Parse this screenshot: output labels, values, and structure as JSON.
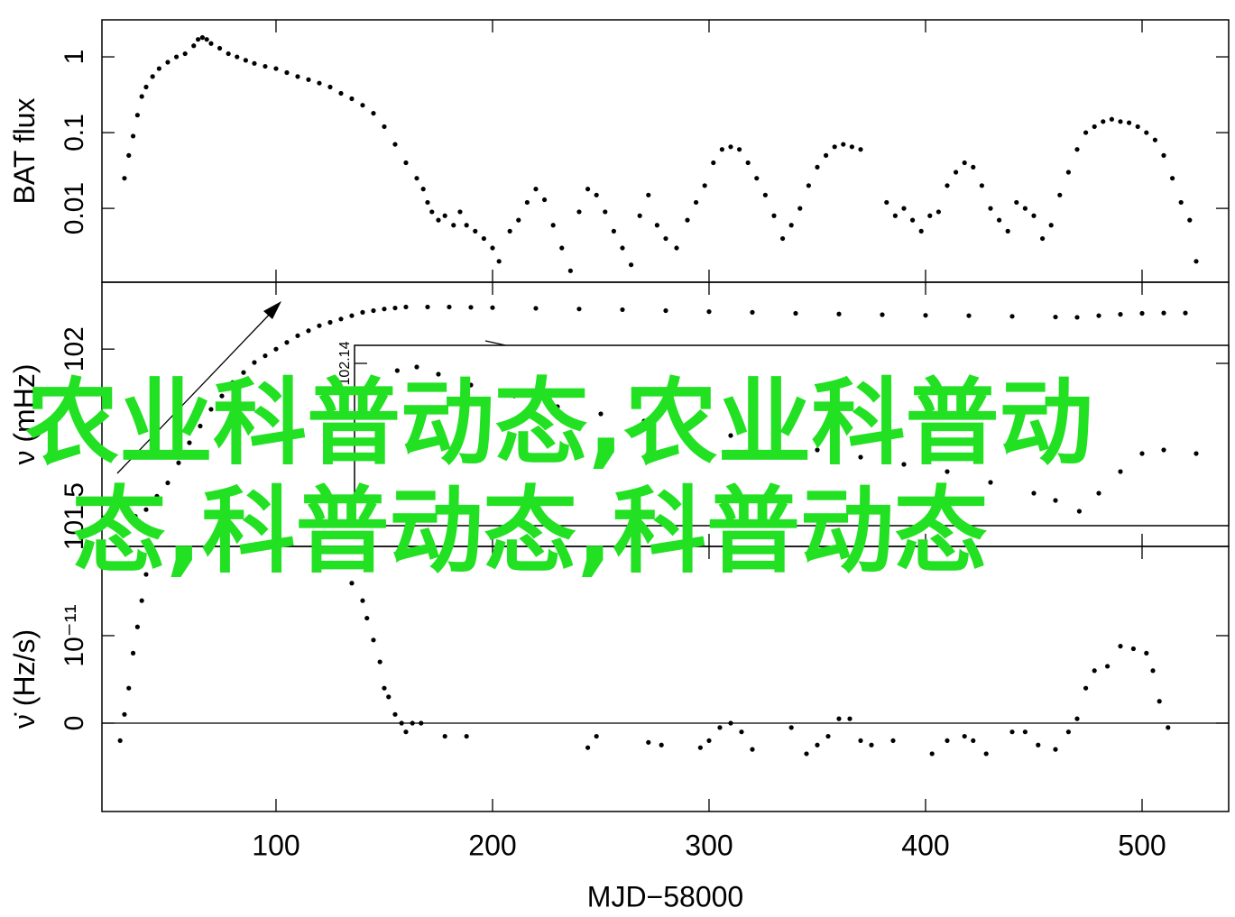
{
  "chart_data": [
    {
      "type": "scatter",
      "ylabel": "BAT flux",
      "yscale": "log",
      "color": "#000000",
      "ylim": [
        0.00106,
        3.08
      ],
      "yticks": [
        1,
        0.1,
        0.01
      ],
      "x": [
        30,
        32,
        34,
        36,
        38,
        40,
        43,
        46,
        50,
        54,
        58,
        62,
        64,
        66,
        68,
        70,
        74,
        78,
        82,
        86,
        90,
        95,
        100,
        105,
        110,
        115,
        120,
        125,
        130,
        135,
        140,
        145,
        150,
        155,
        160,
        165,
        168,
        170,
        172,
        175,
        178,
        182,
        185,
        188,
        192,
        196,
        200,
        203,
        208,
        212,
        216,
        220,
        224,
        228,
        232,
        236,
        240,
        244,
        248,
        252,
        256,
        260,
        264,
        268,
        272,
        276,
        280,
        285,
        290,
        294,
        298,
        302,
        306,
        310,
        314,
        318,
        322,
        326,
        330,
        334,
        338,
        342,
        346,
        350,
        354,
        358,
        362,
        366,
        370,
        382,
        386,
        390,
        394,
        398,
        402,
        406,
        410,
        414,
        418,
        422,
        426,
        430,
        434,
        438,
        442,
        446,
        450,
        454,
        458,
        462,
        466,
        470,
        474,
        478,
        482,
        486,
        490,
        494,
        498,
        502,
        506,
        510,
        514,
        518,
        522,
        525
      ],
      "values": [
        0.025,
        0.05,
        0.09,
        0.17,
        0.3,
        0.4,
        0.55,
        0.7,
        0.85,
        1.0,
        1.1,
        1.4,
        1.7,
        1.8,
        1.7,
        1.5,
        1.3,
        1.1,
        1.0,
        0.9,
        0.82,
        0.75,
        0.7,
        0.62,
        0.55,
        0.5,
        0.45,
        0.4,
        0.33,
        0.28,
        0.23,
        0.18,
        0.12,
        0.07,
        0.04,
        0.025,
        0.018,
        0.012,
        0.009,
        0.007,
        0.008,
        0.006,
        0.009,
        0.006,
        0.005,
        0.004,
        0.003,
        0.002,
        0.005,
        0.007,
        0.012,
        0.018,
        0.013,
        0.006,
        0.003,
        0.0015,
        0.009,
        0.018,
        0.015,
        0.009,
        0.005,
        0.003,
        0.0018,
        0.008,
        0.015,
        0.006,
        0.004,
        0.003,
        0.007,
        0.012,
        0.02,
        0.04,
        0.06,
        0.065,
        0.06,
        0.04,
        0.025,
        0.015,
        0.008,
        0.004,
        0.006,
        0.01,
        0.02,
        0.035,
        0.05,
        0.065,
        0.07,
        0.065,
        0.06,
        0.012,
        0.008,
        0.01,
        0.007,
        0.005,
        0.008,
        0.009,
        0.02,
        0.03,
        0.04,
        0.035,
        0.02,
        0.01,
        0.007,
        0.005,
        0.012,
        0.01,
        0.008,
        0.004,
        0.006,
        0.015,
        0.03,
        0.06,
        0.1,
        0.12,
        0.14,
        0.15,
        0.14,
        0.135,
        0.12,
        0.1,
        0.08,
        0.05,
        0.025,
        0.012,
        0.007,
        0.002
      ]
    },
    {
      "type": "scatter",
      "ylabel": "ν (mHz)",
      "color": "#000000",
      "ylim": [
        101.41,
        102.2
      ],
      "yticks": [
        101.5,
        102
      ],
      "x": [
        35,
        40,
        45,
        50,
        55,
        60,
        65,
        70,
        75,
        80,
        85,
        90,
        95,
        100,
        105,
        110,
        115,
        120,
        125,
        130,
        135,
        140,
        145,
        150,
        155,
        160,
        170,
        180,
        190,
        200,
        220,
        240,
        260,
        280,
        300,
        320,
        340,
        360,
        380,
        400,
        420,
        440,
        460,
        470,
        480,
        490,
        500,
        510,
        520
      ],
      "values": [
        101.5,
        101.52,
        101.56,
        101.6,
        101.66,
        101.72,
        101.77,
        101.82,
        101.86,
        101.9,
        101.93,
        101.96,
        101.98,
        102.0,
        102.02,
        102.04,
        102.055,
        102.07,
        102.08,
        102.09,
        102.1,
        102.11,
        102.115,
        102.12,
        102.123,
        102.126,
        102.126,
        102.126,
        102.125,
        102.124,
        102.122,
        102.12,
        102.118,
        102.115,
        102.112,
        102.11,
        102.107,
        102.105,
        102.103,
        102.101,
        102.1,
        102.098,
        102.096,
        102.095,
        102.1,
        102.104,
        102.107,
        102.108,
        102.108
      ]
    },
    {
      "type": "scatter",
      "ylabel": "ν̇ (Hz/s)",
      "xlabel": "MJD−58000",
      "color": "#000000",
      "zero_line": true,
      "xlim": [
        19.6,
        540
      ],
      "xticks": [
        100,
        200,
        300,
        400,
        500
      ],
      "ylim": [
        -1.01e-11,
        2.02e-11
      ],
      "yticks": [
        0,
        {
          "value": 1e-11,
          "label": "10⁻¹¹"
        }
      ],
      "x": [
        28,
        30,
        32,
        34,
        36,
        38,
        40,
        130,
        135,
        140,
        142,
        145,
        148,
        150,
        152,
        155,
        158,
        160,
        163,
        167,
        178,
        188,
        244,
        248,
        272,
        278,
        296,
        300,
        305,
        310,
        315,
        320,
        338,
        345,
        350,
        355,
        360,
        365,
        370,
        375,
        385,
        403,
        410,
        418,
        422,
        428,
        440,
        446,
        452,
        460,
        466,
        470,
        474,
        478,
        484,
        490,
        496,
        502,
        505,
        508,
        512
      ],
      "values": [
        -2e-12,
        1e-12,
        4e-12,
        8e-12,
        1.1e-11,
        1.4e-11,
        1.7e-11,
        1.8e-11,
        1.6e-11,
        1.4e-11,
        1.2e-11,
        9.5e-12,
        7e-12,
        4e-12,
        3e-12,
        1e-12,
        0,
        -1e-12,
        0,
        0,
        -1.5e-12,
        -1.5e-12,
        -2.8e-12,
        -1.5e-12,
        -2.2e-12,
        -2.5e-12,
        -2.8e-12,
        -2e-12,
        -5e-13,
        0,
        -1e-12,
        -3e-12,
        -5e-13,
        -3.5e-12,
        -2.5e-12,
        -1.5e-12,
        5e-13,
        5e-13,
        -2e-12,
        -2.5e-12,
        -2e-12,
        -3.5e-12,
        -2e-12,
        -1.5e-12,
        -2e-12,
        -3.5e-12,
        -1e-12,
        -1e-12,
        -2.5e-12,
        -3e-12,
        -1e-12,
        5e-13,
        4e-12,
        6e-12,
        6.5e-12,
        8.8e-12,
        8.5e-12,
        8e-12,
        6e-12,
        2.5e-12,
        -5e-13
      ]
    },
    {
      "type": "scatter",
      "inset": true,
      "color": "#000000",
      "ylim": [
        102.095,
        102.145
      ],
      "yticks": [
        {
          "value": 102.14,
          "label": "102.14"
        }
      ],
      "x": [
        156,
        165,
        175,
        190,
        210,
        230,
        250,
        270,
        290,
        310,
        330,
        350,
        370,
        390,
        410,
        430,
        450,
        460,
        471,
        480,
        490,
        500,
        510,
        525
      ],
      "values": [
        102.138,
        102.139,
        102.137,
        102.134,
        102.131,
        102.128,
        102.126,
        102.124,
        102.122,
        102.12,
        102.118,
        102.116,
        102.114,
        102.112,
        102.11,
        102.107,
        102.104,
        102.102,
        102.099,
        102.104,
        102.11,
        102.115,
        102.116,
        102.115
      ]
    },
    {
      "type": "text",
      "overlay_lines": [
        "农业科普动态,农业科普动",
        "态,科普动态,科普动态"
      ]
    }
  ]
}
